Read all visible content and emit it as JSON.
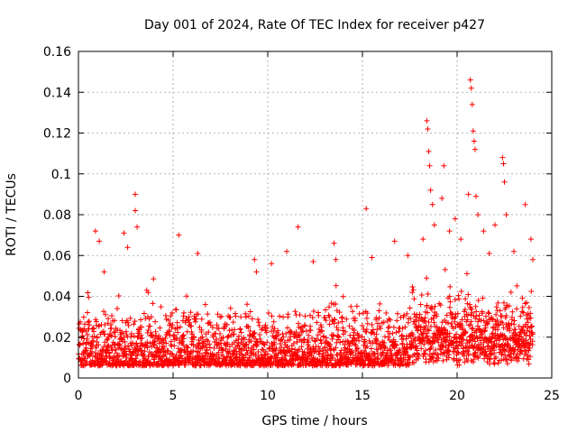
{
  "chart_data": {
    "type": "scatter",
    "title": "Day 001 of 2024, Rate Of TEC Index for receiver p427",
    "xlabel": "GPS time / hours",
    "ylabel": "ROTI / TECUs",
    "xlim": [
      0,
      25
    ],
    "ylim": [
      0,
      0.16
    ],
    "xticks": [
      0,
      5,
      10,
      15,
      20,
      25
    ],
    "xtick_labels": [
      "0",
      "5",
      "10",
      "15",
      "20",
      "25"
    ],
    "yticks": [
      0,
      0.02,
      0.04,
      0.06,
      0.08,
      0.1,
      0.12,
      0.14,
      0.16
    ],
    "ytick_labels": [
      "0",
      "0.02",
      "0.04",
      "0.06",
      "0.08",
      "0.1",
      "0.12",
      "0.14",
      "0.16"
    ],
    "grid": true,
    "marker": "+",
    "marker_color": "#ff0000",
    "data_range_x": [
      0,
      24
    ],
    "series": [
      {
        "points": [
          [
            0.9,
            0.072
          ],
          [
            1.1,
            0.067
          ],
          [
            2.4,
            0.071
          ],
          [
            2.6,
            0.064
          ],
          [
            3.0,
            0.09
          ],
          [
            3.0,
            0.082
          ],
          [
            3.1,
            0.074
          ],
          [
            5.3,
            0.07
          ],
          [
            6.3,
            0.061
          ],
          [
            9.3,
            0.058
          ],
          [
            9.4,
            0.052
          ],
          [
            10.2,
            0.056
          ],
          [
            11.0,
            0.062
          ],
          [
            11.6,
            0.074
          ],
          [
            12.4,
            0.057
          ],
          [
            13.5,
            0.066
          ],
          [
            13.6,
            0.058
          ],
          [
            15.2,
            0.083
          ],
          [
            15.5,
            0.059
          ],
          [
            16.7,
            0.067
          ],
          [
            17.4,
            0.06
          ],
          [
            18.2,
            0.068
          ],
          [
            18.4,
            0.126
          ],
          [
            18.45,
            0.122
          ],
          [
            18.5,
            0.111
          ],
          [
            18.55,
            0.104
          ],
          [
            18.6,
            0.092
          ],
          [
            18.7,
            0.085
          ],
          [
            18.8,
            0.075
          ],
          [
            19.2,
            0.088
          ],
          [
            19.3,
            0.104
          ],
          [
            19.6,
            0.072
          ],
          [
            19.9,
            0.078
          ],
          [
            20.2,
            0.068
          ],
          [
            20.6,
            0.09
          ],
          [
            20.7,
            0.146
          ],
          [
            20.75,
            0.142
          ],
          [
            20.8,
            0.134
          ],
          [
            20.85,
            0.121
          ],
          [
            20.9,
            0.116
          ],
          [
            20.95,
            0.112
          ],
          [
            21.0,
            0.089
          ],
          [
            21.1,
            0.08
          ],
          [
            21.4,
            0.072
          ],
          [
            21.7,
            0.061
          ],
          [
            22.0,
            0.075
          ],
          [
            22.4,
            0.108
          ],
          [
            22.45,
            0.105
          ],
          [
            22.5,
            0.096
          ],
          [
            22.6,
            0.08
          ],
          [
            23.0,
            0.062
          ],
          [
            23.6,
            0.085
          ],
          [
            23.9,
            0.068
          ],
          [
            24.0,
            0.058
          ]
        ]
      }
    ]
  }
}
